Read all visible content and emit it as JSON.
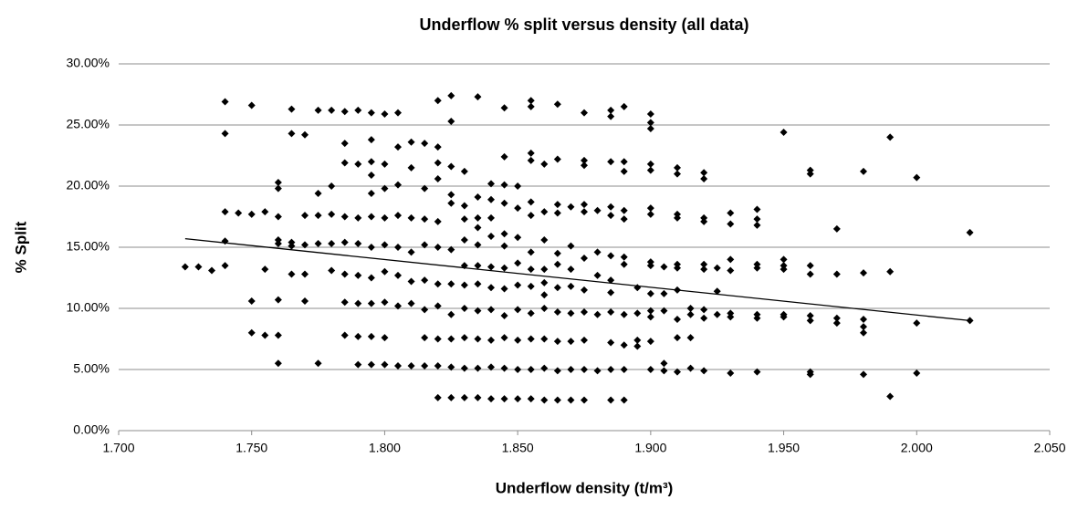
{
  "chart_data": {
    "type": "scatter",
    "title": "Underflow % split versus density (all data)",
    "x_label": "Underflow density (t/m³)",
    "y_label": "% Split",
    "color": "#000000",
    "grid": true,
    "xlim": [
      1.7,
      2.05
    ],
    "xticks": [
      {
        "value": 1.7,
        "label": "1.700"
      },
      {
        "value": 1.75,
        "label": "1.750"
      },
      {
        "value": 1.8,
        "label": "1.800"
      },
      {
        "value": 1.85,
        "label": "1.850"
      },
      {
        "value": 1.9,
        "label": "1.900"
      },
      {
        "value": 1.95,
        "label": "1.950"
      },
      {
        "value": 2.0,
        "label": "2.000"
      },
      {
        "value": 2.05,
        "label": "2.050"
      }
    ],
    "ylim": [
      0,
      30
    ],
    "yticks": [
      {
        "value": 0,
        "label": "0.00%"
      },
      {
        "value": 5,
        "label": "5.00%"
      },
      {
        "value": 10,
        "label": "10.00%"
      },
      {
        "value": 15,
        "label": "15.00%"
      },
      {
        "value": 20,
        "label": "20.00%"
      },
      {
        "value": 25,
        "label": "25.00%"
      },
      {
        "value": 30,
        "label": "30.00%"
      }
    ],
    "x": [
      1.725,
      1.73,
      1.735,
      1.74,
      1.74,
      1.74,
      1.74,
      1.74,
      1.745,
      1.75,
      1.75,
      1.75,
      1.75,
      1.755,
      1.755,
      1.755,
      1.76,
      1.76,
      1.76,
      1.76,
      1.76,
      1.76,
      1.76,
      1.76,
      1.765,
      1.765,
      1.765,
      1.765,
      1.765,
      1.77,
      1.77,
      1.77,
      1.77,
      1.77,
      1.775,
      1.775,
      1.775,
      1.775,
      1.775,
      1.78,
      1.78,
      1.78,
      1.78,
      1.78,
      1.785,
      1.785,
      1.785,
      1.785,
      1.785,
      1.785,
      1.785,
      1.785,
      1.79,
      1.79,
      1.79,
      1.79,
      1.79,
      1.79,
      1.79,
      1.79,
      1.795,
      1.795,
      1.795,
      1.795,
      1.795,
      1.795,
      1.795,
      1.795,
      1.795,
      1.795,
      1.795,
      1.8,
      1.8,
      1.8,
      1.8,
      1.8,
      1.8,
      1.8,
      1.8,
      1.8,
      1.805,
      1.805,
      1.805,
      1.805,
      1.805,
      1.805,
      1.805,
      1.805,
      1.81,
      1.81,
      1.81,
      1.81,
      1.81,
      1.81,
      1.81,
      1.815,
      1.815,
      1.815,
      1.815,
      1.815,
      1.815,
      1.815,
      1.815,
      1.82,
      1.82,
      1.82,
      1.82,
      1.82,
      1.82,
      1.82,
      1.82,
      1.82,
      1.82,
      1.82,
      1.825,
      1.825,
      1.825,
      1.825,
      1.825,
      1.825,
      1.825,
      1.825,
      1.825,
      1.825,
      1.825,
      1.83,
      1.83,
      1.83,
      1.83,
      1.83,
      1.83,
      1.83,
      1.83,
      1.83,
      1.83,
      1.835,
      1.835,
      1.835,
      1.835,
      1.835,
      1.835,
      1.835,
      1.835,
      1.835,
      1.835,
      1.835,
      1.84,
      1.84,
      1.84,
      1.84,
      1.84,
      1.84,
      1.84,
      1.84,
      1.84,
      1.84,
      1.845,
      1.845,
      1.845,
      1.845,
      1.845,
      1.845,
      1.845,
      1.845,
      1.845,
      1.845,
      1.845,
      1.845,
      1.85,
      1.85,
      1.85,
      1.85,
      1.85,
      1.85,
      1.85,
      1.85,
      1.85,
      1.855,
      1.855,
      1.855,
      1.855,
      1.855,
      1.855,
      1.855,
      1.855,
      1.855,
      1.855,
      1.855,
      1.855,
      1.855,
      1.86,
      1.86,
      1.86,
      1.86,
      1.86,
      1.86,
      1.86,
      1.86,
      1.86,
      1.86,
      1.865,
      1.865,
      1.865,
      1.865,
      1.865,
      1.865,
      1.865,
      1.865,
      1.865,
      1.865,
      1.865,
      1.87,
      1.87,
      1.87,
      1.87,
      1.87,
      1.87,
      1.87,
      1.87,
      1.875,
      1.875,
      1.875,
      1.875,
      1.875,
      1.875,
      1.875,
      1.875,
      1.875,
      1.875,
      1.875,
      1.88,
      1.88,
      1.88,
      1.88,
      1.88,
      1.885,
      1.885,
      1.885,
      1.885,
      1.885,
      1.885,
      1.885,
      1.885,
      1.885,
      1.885,
      1.885,
      1.885,
      1.89,
      1.89,
      1.89,
      1.89,
      1.89,
      1.89,
      1.89,
      1.89,
      1.89,
      1.89,
      1.89,
      1.895,
      1.895,
      1.895,
      1.895,
      1.9,
      1.9,
      1.9,
      1.9,
      1.9,
      1.9,
      1.9,
      1.9,
      1.9,
      1.9,
      1.9,
      1.9,
      1.9,
      1.9,
      1.905,
      1.905,
      1.905,
      1.905,
      1.905,
      1.91,
      1.91,
      1.91,
      1.91,
      1.91,
      1.91,
      1.91,
      1.91,
      1.91,
      1.91,
      1.915,
      1.915,
      1.915,
      1.915,
      1.92,
      1.92,
      1.92,
      1.92,
      1.92,
      1.92,
      1.92,
      1.92,
      1.92,
      1.925,
      1.925,
      1.925,
      1.93,
      1.93,
      1.93,
      1.93,
      1.93,
      1.93,
      1.93,
      1.94,
      1.94,
      1.94,
      1.94,
      1.94,
      1.94,
      1.94,
      1.94,
      1.95,
      1.95,
      1.95,
      1.95,
      1.95,
      1.95,
      1.96,
      1.96,
      1.96,
      1.96,
      1.96,
      1.96,
      1.96,
      1.96,
      1.97,
      1.97,
      1.97,
      1.97,
      1.98,
      1.98,
      1.98,
      1.98,
      1.98,
      1.98,
      1.99,
      1.99,
      1.99,
      2.0,
      2.0,
      2.0,
      2.02,
      2.02
    ],
    "values": [
      13.4,
      13.4,
      13.1,
      26.9,
      24.3,
      17.9,
      15.5,
      13.5,
      17.8,
      26.6,
      17.7,
      10.6,
      8.0,
      17.9,
      13.2,
      7.8,
      20.3,
      19.8,
      17.5,
      15.6,
      15.3,
      10.7,
      7.8,
      5.5,
      26.3,
      24.3,
      15.4,
      15.1,
      12.8,
      24.2,
      17.6,
      15.2,
      12.8,
      10.6,
      26.2,
      19.4,
      17.6,
      15.3,
      5.5,
      26.2,
      20.0,
      17.7,
      15.3,
      13.1,
      26.1,
      23.5,
      21.9,
      17.5,
      15.4,
      12.8,
      10.5,
      7.8,
      26.2,
      21.8,
      17.4,
      15.3,
      12.7,
      10.4,
      7.7,
      5.4,
      26.0,
      23.8,
      22.0,
      20.9,
      19.4,
      17.5,
      15.0,
      12.5,
      10.4,
      7.7,
      5.4,
      25.9,
      21.8,
      19.8,
      17.4,
      15.2,
      13.0,
      10.5,
      7.6,
      5.4,
      26.0,
      23.2,
      20.1,
      17.6,
      15.0,
      12.7,
      10.2,
      5.3,
      23.6,
      21.5,
      17.4,
      14.6,
      12.2,
      10.4,
      5.3,
      23.5,
      19.8,
      17.3,
      15.2,
      12.3,
      9.9,
      7.6,
      5.3,
      27.0,
      23.2,
      21.9,
      20.6,
      17.1,
      15.0,
      12.0,
      10.2,
      7.5,
      5.3,
      2.7,
      27.4,
      25.3,
      21.6,
      19.3,
      18.6,
      14.8,
      12.0,
      9.5,
      7.5,
      5.2,
      2.7,
      21.2,
      18.4,
      17.3,
      15.6,
      13.5,
      11.9,
      10.0,
      7.6,
      5.1,
      2.7,
      27.3,
      19.1,
      17.4,
      16.6,
      15.2,
      13.5,
      12.0,
      9.8,
      7.5,
      5.1,
      2.7,
      20.2,
      18.9,
      17.4,
      15.9,
      13.4,
      11.7,
      9.9,
      7.4,
      5.2,
      2.6,
      26.4,
      22.4,
      20.1,
      18.6,
      16.1,
      15.1,
      13.3,
      11.6,
      9.4,
      7.6,
      5.1,
      2.6,
      20.0,
      18.2,
      15.8,
      13.7,
      11.9,
      9.9,
      7.4,
      5.0,
      2.6,
      27.0,
      26.5,
      22.7,
      22.1,
      18.7,
      17.6,
      14.6,
      13.2,
      11.8,
      9.6,
      7.5,
      5.0,
      2.6,
      21.8,
      17.9,
      15.6,
      13.2,
      12.1,
      11.1,
      10.0,
      7.5,
      5.1,
      2.5,
      26.7,
      22.2,
      18.5,
      17.8,
      14.5,
      13.6,
      11.7,
      9.7,
      7.3,
      4.9,
      2.5,
      18.3,
      15.1,
      13.2,
      11.8,
      9.6,
      7.3,
      5.0,
      2.5,
      26.0,
      22.1,
      21.7,
      18.5,
      17.9,
      14.1,
      11.5,
      9.7,
      7.4,
      5.0,
      2.5,
      18.0,
      14.6,
      12.7,
      9.5,
      4.9,
      26.2,
      25.7,
      22.0,
      18.3,
      17.6,
      14.3,
      12.3,
      11.3,
      9.7,
      7.2,
      5.0,
      2.5,
      26.5,
      22.0,
      21.2,
      18.0,
      17.3,
      14.2,
      13.6,
      9.5,
      7.0,
      5.0,
      2.5,
      11.7,
      9.6,
      7.4,
      6.9,
      25.9,
      25.2,
      24.7,
      21.8,
      21.3,
      18.2,
      17.7,
      13.8,
      13.5,
      11.2,
      9.8,
      9.3,
      7.3,
      5.0,
      13.4,
      11.2,
      9.8,
      5.5,
      4.9,
      21.5,
      21.0,
      17.7,
      17.4,
      13.6,
      13.3,
      11.5,
      9.1,
      7.6,
      4.8,
      10.0,
      9.5,
      7.6,
      5.1,
      21.1,
      20.6,
      17.4,
      17.1,
      13.6,
      13.2,
      9.9,
      9.2,
      4.9,
      13.3,
      11.4,
      9.5,
      17.8,
      16.9,
      14.0,
      13.1,
      9.6,
      9.3,
      4.7,
      18.1,
      17.3,
      16.8,
      13.6,
      13.3,
      9.5,
      9.2,
      4.8,
      24.4,
      14.0,
      13.5,
      13.2,
      9.5,
      9.3,
      21.3,
      21.0,
      13.5,
      12.8,
      9.4,
      9.0,
      4.8,
      4.6,
      16.5,
      12.8,
      9.2,
      8.8,
      21.2,
      12.9,
      9.1,
      8.5,
      8.0,
      4.6,
      24.0,
      13.0,
      2.8,
      20.7,
      8.8,
      4.7,
      16.2,
      9.0
    ],
    "trendline": {
      "x": [
        1.725,
        2.02
      ],
      "values": [
        15.7,
        9.0
      ]
    }
  }
}
